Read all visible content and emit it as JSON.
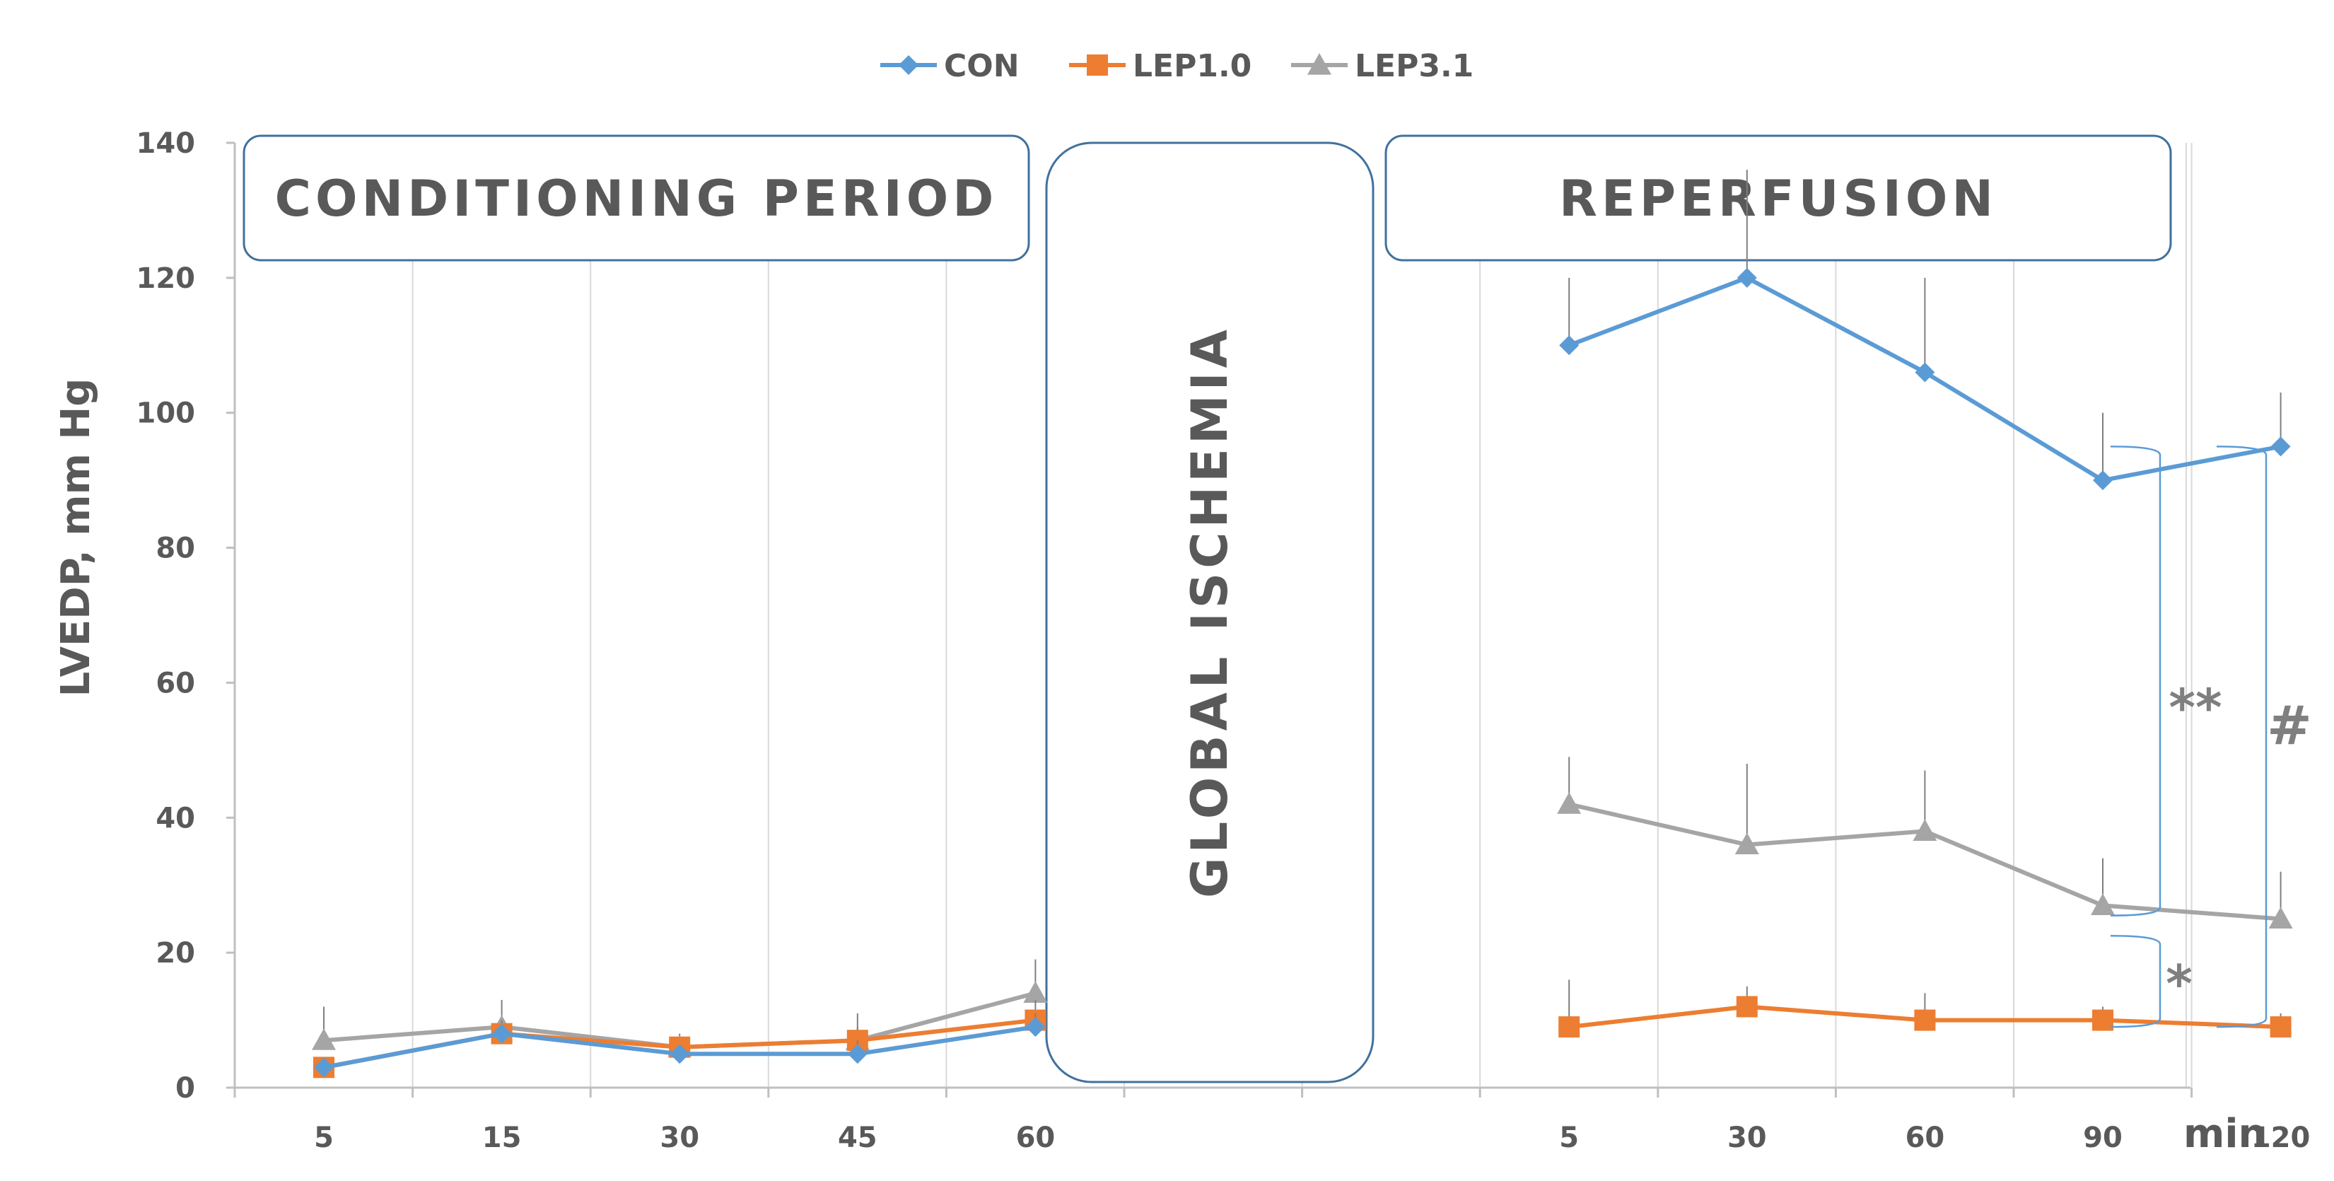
{
  "chart_data": {
    "type": "line",
    "title": "",
    "ylabel": "LVEDP, mm Hg",
    "xlabel": "min",
    "ylim": [
      0,
      140
    ],
    "yticks": [
      0,
      20,
      40,
      60,
      80,
      100,
      120,
      140
    ],
    "grid": "vertical",
    "legend_position": "top-center",
    "periods": [
      {
        "label": "CONDITIONING PERIOD",
        "x_labels": [
          "5",
          "15",
          "30",
          "45",
          "60"
        ]
      },
      {
        "label": "GLOBAL ISCHEMIA",
        "x_labels": []
      },
      {
        "label": "REPERFUSION",
        "x_labels": [
          "5",
          "30",
          "60",
          "90",
          "120"
        ]
      }
    ],
    "categories": [
      "5",
      "15",
      "30",
      "45",
      "60",
      "",
      "",
      "5",
      "30",
      "60",
      "90",
      "120"
    ],
    "series": [
      {
        "name": "CON",
        "color": "#5b9bd5",
        "marker": "diamond",
        "conditioning": [
          3,
          8,
          5,
          5,
          9
        ],
        "conditioning_err": [
          1,
          1,
          1,
          2,
          2
        ],
        "reperfusion": [
          110,
          120,
          106,
          90,
          95
        ],
        "reperfusion_err": [
          10,
          16,
          14,
          10,
          8
        ]
      },
      {
        "name": "LEP1.0",
        "color": "#ed7d31",
        "marker": "square",
        "conditioning": [
          3,
          8,
          6,
          7,
          10
        ],
        "conditioning_err": [
          1,
          2,
          1,
          2,
          3
        ],
        "reperfusion": [
          9,
          12,
          10,
          10,
          9
        ],
        "reperfusion_err": [
          7,
          3,
          4,
          2,
          2
        ]
      },
      {
        "name": "LEP3.1",
        "color": "#a5a5a5",
        "marker": "triangle",
        "conditioning": [
          7,
          9,
          6,
          7,
          14
        ],
        "conditioning_err": [
          5,
          4,
          2,
          4,
          5
        ],
        "reperfusion": [
          42,
          36,
          38,
          27,
          25
        ],
        "reperfusion_err": [
          7,
          12,
          9,
          7,
          7
        ]
      }
    ],
    "annotations": [
      {
        "text": "**",
        "between": [
          "CON",
          "LEP3.1"
        ]
      },
      {
        "text": "*",
        "between": [
          "LEP3.1",
          "LEP1.0"
        ]
      },
      {
        "text": "#",
        "between": [
          "CON",
          "LEP1.0"
        ]
      }
    ]
  }
}
